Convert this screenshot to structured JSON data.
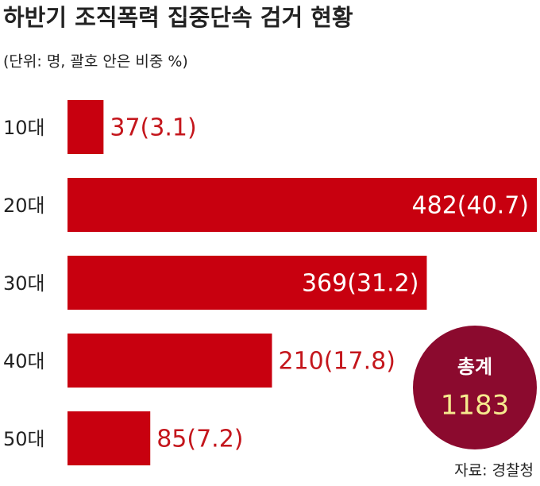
{
  "chart_data": {
    "type": "bar",
    "orientation": "horizontal",
    "title": "하반기 조직폭력 집중단속 검거 현황",
    "subtitle": "(단위: 명, 괄호 안은 비중 %)",
    "categories": [
      "10대",
      "20대",
      "30대",
      "40대",
      "50대"
    ],
    "values": [
      37,
      482,
      369,
      210,
      85
    ],
    "value_labels": [
      "37(3.1)",
      "482(40.7)",
      "369(31.2)",
      "210(17.8)",
      "85(7.2)"
    ],
    "color": "#c8000f",
    "total": {
      "label": "총계",
      "value": 1183
    },
    "source": "자료: 경찰청"
  }
}
